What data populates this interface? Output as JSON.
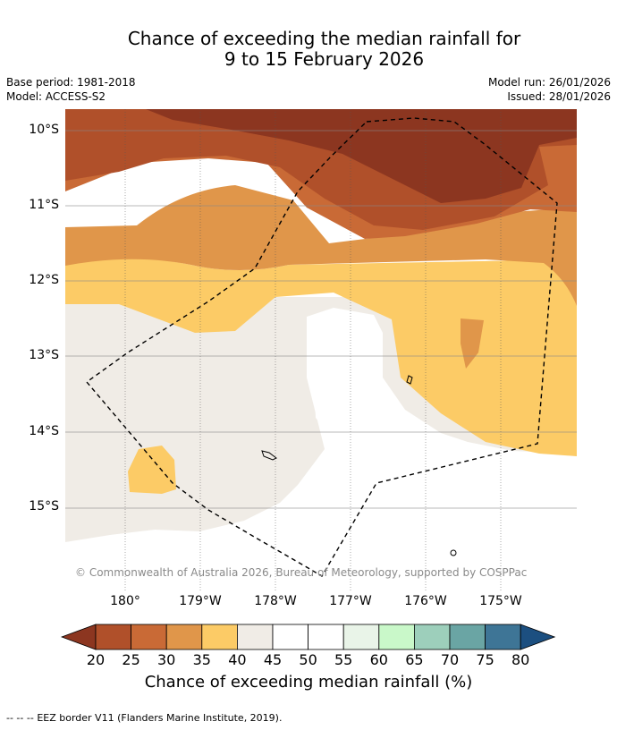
{
  "title": {
    "line1": "Chance of exceeding the median rainfall for",
    "line2": "9 to 15 February 2026"
  },
  "meta": {
    "base_period": "Base period: 1981-2018",
    "model": "Model: ACCESS-S2",
    "model_run": "Model run: 26/01/2026",
    "issued": "Issued: 28/01/2026"
  },
  "map": {
    "lat_labels": [
      "10°S",
      "11°S",
      "12°S",
      "13°S",
      "14°S",
      "15°S"
    ],
    "lon_labels": [
      "180°",
      "179°W",
      "178°W",
      "177°W",
      "176°W",
      "175°W"
    ],
    "copyright": "© Commonwealth of Australia 2026, Bureau of Meteorology, supported by COSPPac",
    "eez_border_style": "dashed"
  },
  "colorbar": {
    "ticks": [
      "20",
      "25",
      "30",
      "35",
      "40",
      "45",
      "50",
      "55",
      "60",
      "65",
      "70",
      "75",
      "80"
    ],
    "colors": [
      "#b0502a",
      "#c96a36",
      "#e0964a",
      "#fccb66",
      "#f0ece6",
      "#ffffff",
      "#ffffff",
      "#e9f4e8",
      "#c9f8c9",
      "#9dcfbb",
      "#6aa5a4",
      "#3e7596"
    ],
    "under_color": "#8c3620",
    "over_color": "#1c4f80",
    "label": "Chance of exceeding median rainfall (%)"
  },
  "footer": {
    "legend_symbol": "--  --  --",
    "text": "EEZ border V11 (Flanders Marine Institute, 2019)."
  }
}
